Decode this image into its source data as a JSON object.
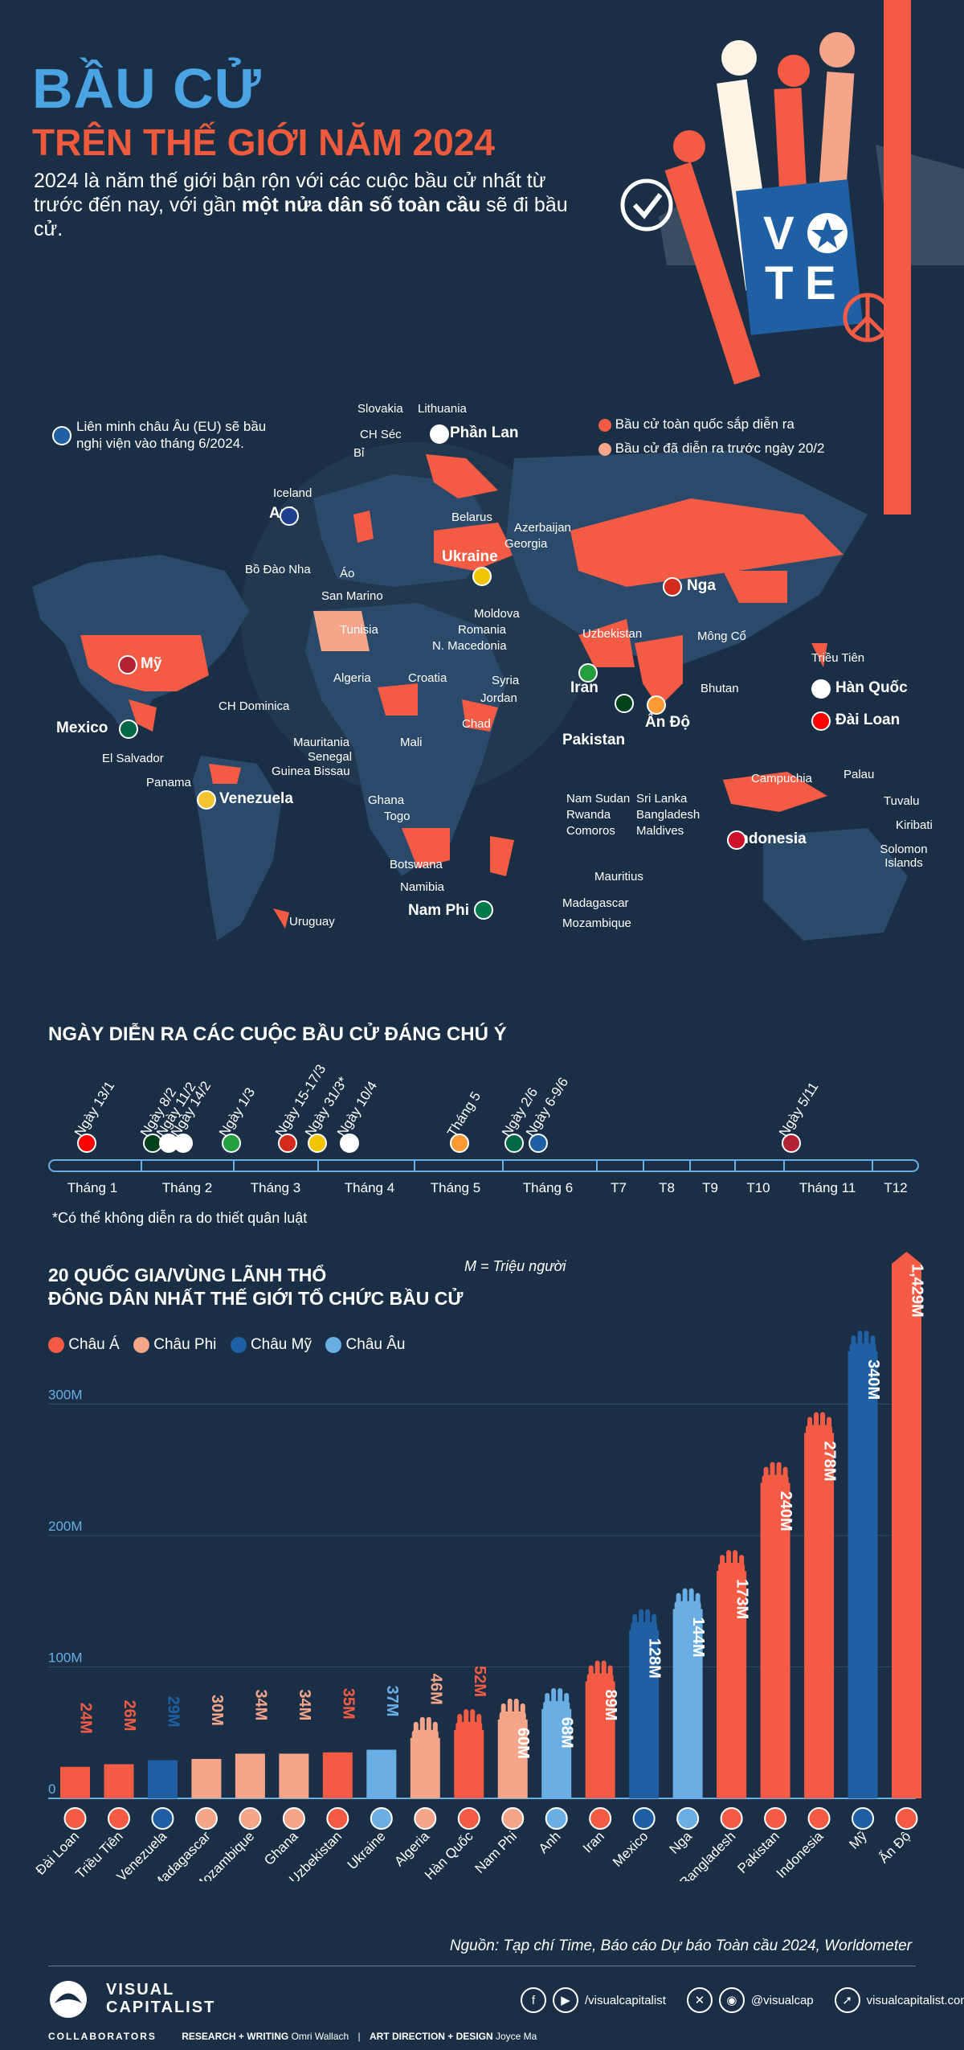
{
  "header": {
    "title_line1": "BẦU CỬ",
    "title_line2": "TRÊN THẾ GIỚI NĂM 2024",
    "intro_part1": "2024 là năm thế giới bận rộn với các cuộc bầu cử nhất từ trước đến nay, với gần ",
    "intro_bold": "một nửa dân số toàn cầu",
    "intro_part2": " sẽ đi bầu cử.",
    "vote_letters": [
      "V",
      "T",
      "E"
    ]
  },
  "map": {
    "eu_note": "Liên minh châu Âu (EU) sẽ bầu nghị viện vào tháng 6/2024.",
    "legend": [
      {
        "label": "Bầu cử toàn quốc sắp diễn ra",
        "color": "#f35b45"
      },
      {
        "label": "Bầu cử đã diễn ra trước ngày 20/2",
        "color": "#f5a58a"
      }
    ],
    "labels": {
      "slovakia": "Slovakia",
      "lithuania": "Lithuania",
      "ch_sec": "CH Séc",
      "phan_lan": "Phần Lan",
      "bi": "Bỉ",
      "iceland": "Iceland",
      "anh": "Anh",
      "belarus": "Belarus",
      "azerbaijan": "Azerbaijan",
      "georgia": "Georgia",
      "bo_dao_nha": "Bồ Đào Nha",
      "ao": "Áo",
      "ukraine": "Ukraine",
      "nga": "Nga",
      "san_marino": "San Marino",
      "moldova": "Moldova",
      "romania": "Romania",
      "n_macedonia": "N. Macedonia",
      "tunisia": "Tunisia",
      "uzbekistan": "Uzbekistan",
      "mong_co": "Mông Cổ",
      "trieu_tien": "Triều Tiên",
      "my": "Mỹ",
      "algeria": "Algeria",
      "croatia": "Croatia",
      "syria": "Syria",
      "jordan": "Jordan",
      "iran": "Iran",
      "bhutan": "Bhutan",
      "han_quoc": "Hàn Quốc",
      "ch_dominica": "CH Dominica",
      "an_do": "Ấn Độ",
      "dai_loan": "Đài Loan",
      "mexico": "Mexico",
      "chad": "Chad",
      "pakistan": "Pakistan",
      "el_salvador": "El Salvador",
      "mauritania": "Mauritania",
      "mali": "Mali",
      "senegal": "Senegal",
      "guinea_bissau": "Guinea Bissau",
      "panama": "Panama",
      "venezuela": "Venezuela",
      "campuchia": "Campuchia",
      "palau": "Palau",
      "nam_sudan": "Nam Sudan",
      "sri_lanka": "Sri Lanka",
      "ghana": "Ghana",
      "rwanda": "Rwanda",
      "bangladesh": "Bangladesh",
      "tuvalu": "Tuvalu",
      "togo": "Togo",
      "comoros": "Comoros",
      "maldives": "Maldives",
      "indonesia": "Indonesia",
      "kiribati": "Kiribati",
      "solomon": "Solomon Islands",
      "botswana": "Botswana",
      "mauritius": "Mauritius",
      "namibia": "Namibia",
      "nam_phi": "Nam Phi",
      "madagascar": "Madagascar",
      "uruguay": "Uruguay",
      "mozambique": "Mozambique"
    }
  },
  "timeline": {
    "title": "NGÀY DIỄN RA CÁC CUỘC BẦU CỬ ĐÁNG CHÚ Ý",
    "events": [
      "Ngày 13/1",
      "Ngày 8/2",
      "Ngày 11/2",
      "Ngày 14/2",
      "Ngày 1/3",
      "Ngày 15-17/3",
      "Ngày 31/3*",
      "Ngày 10/4",
      "Tháng 5",
      "Ngày 2/6",
      "Ngày 6-9/6",
      "Ngày 5/11"
    ],
    "months": [
      "Tháng 1",
      "Tháng 2",
      "Tháng 3",
      "Tháng 4",
      "Tháng 5",
      "Tháng 6",
      "T7",
      "T8",
      "T9",
      "T10",
      "Tháng 11",
      "T12"
    ],
    "footnote": "*Có thể không diễn ra do thiết quân luật"
  },
  "chart_data": {
    "type": "bar",
    "title": "20 QUỐC GIA/VÙNG LÃNH THỔ ĐÔNG DÂN NHẤT THẾ GIỚI TỔ CHỨC BẦU CỬ",
    "title_line1": "20 QUỐC GIA/VÙNG LÃNH THỔ",
    "title_line2": "ĐÔNG DÂN NHẤT THẾ GIỚI TỔ CHỨC BẦU CỬ",
    "unit_note": "M = Triệu người",
    "legend": [
      {
        "name": "Châu Á",
        "color": "#f35b45"
      },
      {
        "name": "Châu Phi",
        "color": "#f5a58a"
      },
      {
        "name": "Châu Mỹ",
        "color": "#1f5fa3"
      },
      {
        "name": "Châu Âu",
        "color": "#6aaee6"
      }
    ],
    "yticks": [
      "0",
      "100M",
      "200M",
      "300M"
    ],
    "ylim": [
      0,
      430
    ],
    "categories": [
      "Đài Loan",
      "Triều Tiên",
      "Venezuela",
      "Madagascar",
      "Mozambique",
      "Ghana",
      "Uzbekistan",
      "Ukraine",
      "Algeria",
      "Hàn Quốc",
      "Nam Phi",
      "Anh",
      "Iran",
      "Mexico",
      "Nga",
      "Bangladesh",
      "Pakistan",
      "Indonesia",
      "Mỹ",
      "Ấn Độ"
    ],
    "values": [
      24,
      26,
      29,
      30,
      34,
      34,
      35,
      37,
      46,
      52,
      60,
      68,
      89,
      128,
      144,
      173,
      240,
      278,
      340,
      1429
    ],
    "value_labels": [
      "24M",
      "26M",
      "29M",
      "30M",
      "34M",
      "34M",
      "35M",
      "37M",
      "46M",
      "52M",
      "60M",
      "68M",
      "89M",
      "128M",
      "144M",
      "173M",
      "240M",
      "278M",
      "340M",
      "1,429M"
    ],
    "regions": [
      "Châu Á",
      "Châu Á",
      "Châu Mỹ",
      "Châu Phi",
      "Châu Phi",
      "Châu Phi",
      "Châu Á",
      "Châu Âu",
      "Châu Phi",
      "Châu Á",
      "Châu Phi",
      "Châu Âu",
      "Châu Á",
      "Châu Mỹ",
      "Châu Âu",
      "Châu Á",
      "Châu Á",
      "Châu Á",
      "Châu Mỹ",
      "Châu Á"
    ],
    "colors": {
      "Châu Á": "#f35b45",
      "Châu Phi": "#f5a58a",
      "Châu Mỹ": "#1f5fa3",
      "Châu Âu": "#6aaee6"
    }
  },
  "footer": {
    "source": "Nguồn: Tạp chí Time, Báo cáo Dự báo Toàn cầu 2024, Worldometer",
    "brand_line1": "VISUAL",
    "brand_line2": "CAPITALIST",
    "social1": "/visualcapitalist",
    "social2": "@visualcap",
    "website": "visualcapitalist.com",
    "collaborators": "COLLABORATORS",
    "research_label": "RESEARCH + WRITING",
    "research_name": "Omri Wallach",
    "art_label": "ART DIRECTION + DESIGN",
    "art_name": "Joyce Ma"
  }
}
